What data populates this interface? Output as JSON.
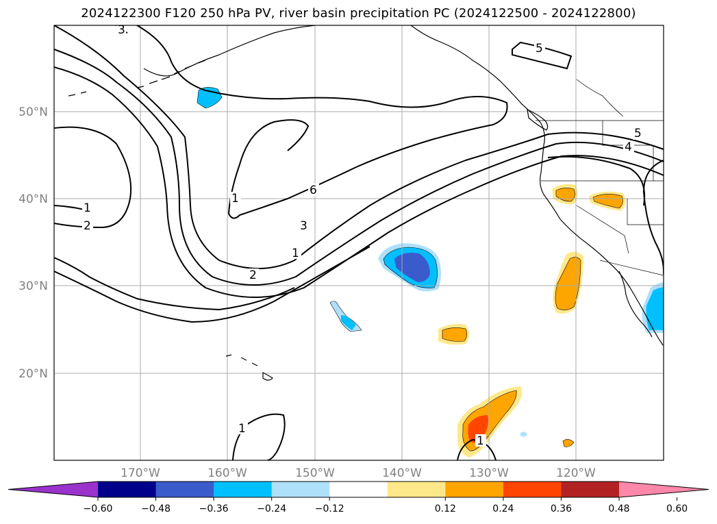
{
  "title": "2024122300 F120 250 hPa PV, river basin precipitation PC (2024122500 - 2024122800)",
  "map": {
    "projection": "lat-lon",
    "extent": {
      "lon": [
        -180,
        -110
      ],
      "lat": [
        10,
        60
      ]
    },
    "gridlines": true,
    "grid_color": "#aaaaaa",
    "lat_ticks": [
      "20°N",
      "30°N",
      "40°N",
      "50°N"
    ],
    "lon_ticks": [
      "170°W",
      "160°W",
      "150°W",
      "140°W",
      "130°W",
      "120°W"
    ]
  },
  "pv_contours": {
    "color": "#000000",
    "labels": [
      "3",
      "5",
      "4",
      "5",
      "1",
      "2",
      "1",
      "6",
      "3",
      "1",
      "2",
      "1",
      "1"
    ]
  },
  "colorbar": {
    "ticks": [
      "−0.60",
      "−0.48",
      "−0.36",
      "−0.24",
      "−0.12",
      "0.12",
      "0.24",
      "0.36",
      "0.48",
      "0.60"
    ],
    "colors": [
      "#9933cc",
      "#00008b",
      "#3a5bcc",
      "#00bfff",
      "#aee0fa",
      "#ffffff",
      "#ffe88a",
      "#ffa500",
      "#ff4500",
      "#b22222",
      "#ff88aa"
    ],
    "extend": "both"
  }
}
